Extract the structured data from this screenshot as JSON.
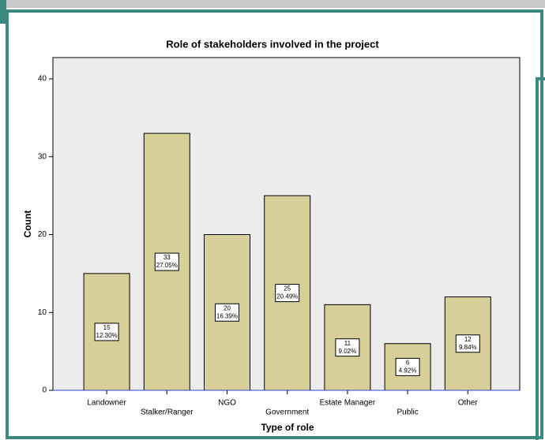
{
  "chart_data": {
    "type": "bar",
    "title": "Role of stakeholders involved in the project",
    "x_label": "Type of role",
    "y_label": "Count",
    "categories": [
      "Landowner",
      "Stalker/Ranger",
      "NGO",
      "Government",
      "Estate Manager",
      "Public",
      "Other"
    ],
    "values": [
      15,
      33,
      20,
      25,
      11,
      6,
      12
    ],
    "value_labels": [
      "15",
      "33",
      "20",
      "25",
      "11",
      "6",
      "12"
    ],
    "percent_labels": [
      "12.30%",
      "27.05%",
      "16.39%",
      "20.49%",
      "9.02%",
      "4.92%",
      "9.84%"
    ],
    "color": "#d6cf98",
    "ylim": [
      0,
      40
    ],
    "yticks": [
      0,
      10,
      20,
      30,
      40
    ]
  }
}
